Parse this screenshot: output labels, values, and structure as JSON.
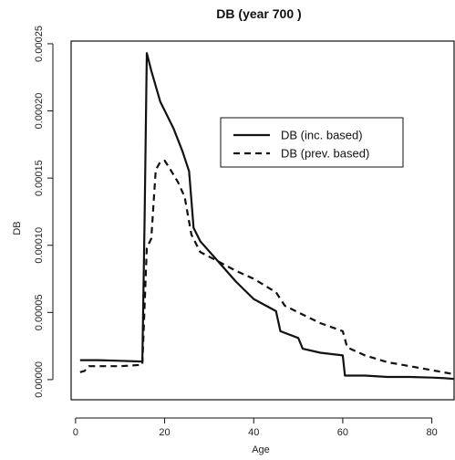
{
  "chart_data": {
    "type": "line",
    "title": "DB (year 700 )",
    "xlabel": "Age",
    "ylabel": "DB",
    "xlim": [
      -1,
      85
    ],
    "ylim": [
      -1.5e-05,
      0.000252
    ],
    "x_ticks": [
      0,
      20,
      40,
      60,
      80
    ],
    "x_tick_labels": [
      "0",
      "20",
      "40",
      "60",
      "80"
    ],
    "y_ticks": [
      0,
      5e-05,
      0.0001,
      0.00015,
      0.0002,
      0.00025
    ],
    "y_tick_labels": [
      "0.00000",
      "0.00005",
      "0.00010",
      "0.00015",
      "0.00020",
      "0.00025"
    ],
    "grid": false,
    "legend_position": "top-right",
    "series": [
      {
        "name": "DB (inc. based)",
        "style": "solid",
        "x": [
          1,
          5,
          10,
          15,
          15.5,
          16,
          17,
          19,
          22,
          24,
          25.5,
          26.5,
          28,
          32,
          36,
          40,
          45,
          46,
          50,
          51,
          55,
          60,
          60.5,
          65,
          70,
          75,
          80,
          83,
          85
        ],
        "y": [
          1.45e-05,
          1.45e-05,
          1.4e-05,
          1.35e-05,
          0.00012,
          0.000243,
          0.00023,
          0.000207,
          0.000187,
          0.00017,
          0.000155,
          0.000113,
          0.000103,
          8.8e-05,
          7.3e-05,
          6e-05,
          5.1e-05,
          3.6e-05,
          3.1e-05,
          2.3e-05,
          2e-05,
          1.8e-05,
          3e-06,
          3e-06,
          2e-06,
          2e-06,
          1.5e-06,
          1e-06,
          5e-07
        ]
      },
      {
        "name": "DB (prev. based)",
        "style": "dashed",
        "x": [
          1,
          2,
          3,
          5,
          10,
          15,
          16,
          17,
          18,
          19,
          20,
          21,
          23,
          24.5,
          26,
          28,
          32,
          36,
          40,
          45,
          47,
          50,
          55,
          60,
          61,
          65,
          70,
          75,
          80,
          85
        ],
        "y": [
          5.5e-06,
          6.5e-06,
          1e-05,
          1e-05,
          1e-05,
          1.1e-05,
          9.8e-05,
          0.000105,
          0.000156,
          0.000162,
          0.000163,
          0.000158,
          0.000147,
          0.000136,
          0.000108,
          9.5e-05,
          8.8e-05,
          8.1e-05,
          7.5e-05,
          6.5e-05,
          5.5e-05,
          5e-05,
          4.2e-05,
          3.6e-05,
          2.4e-05,
          1.8e-05,
          1.3e-05,
          1e-05,
          7e-06,
          4e-06
        ]
      }
    ]
  }
}
